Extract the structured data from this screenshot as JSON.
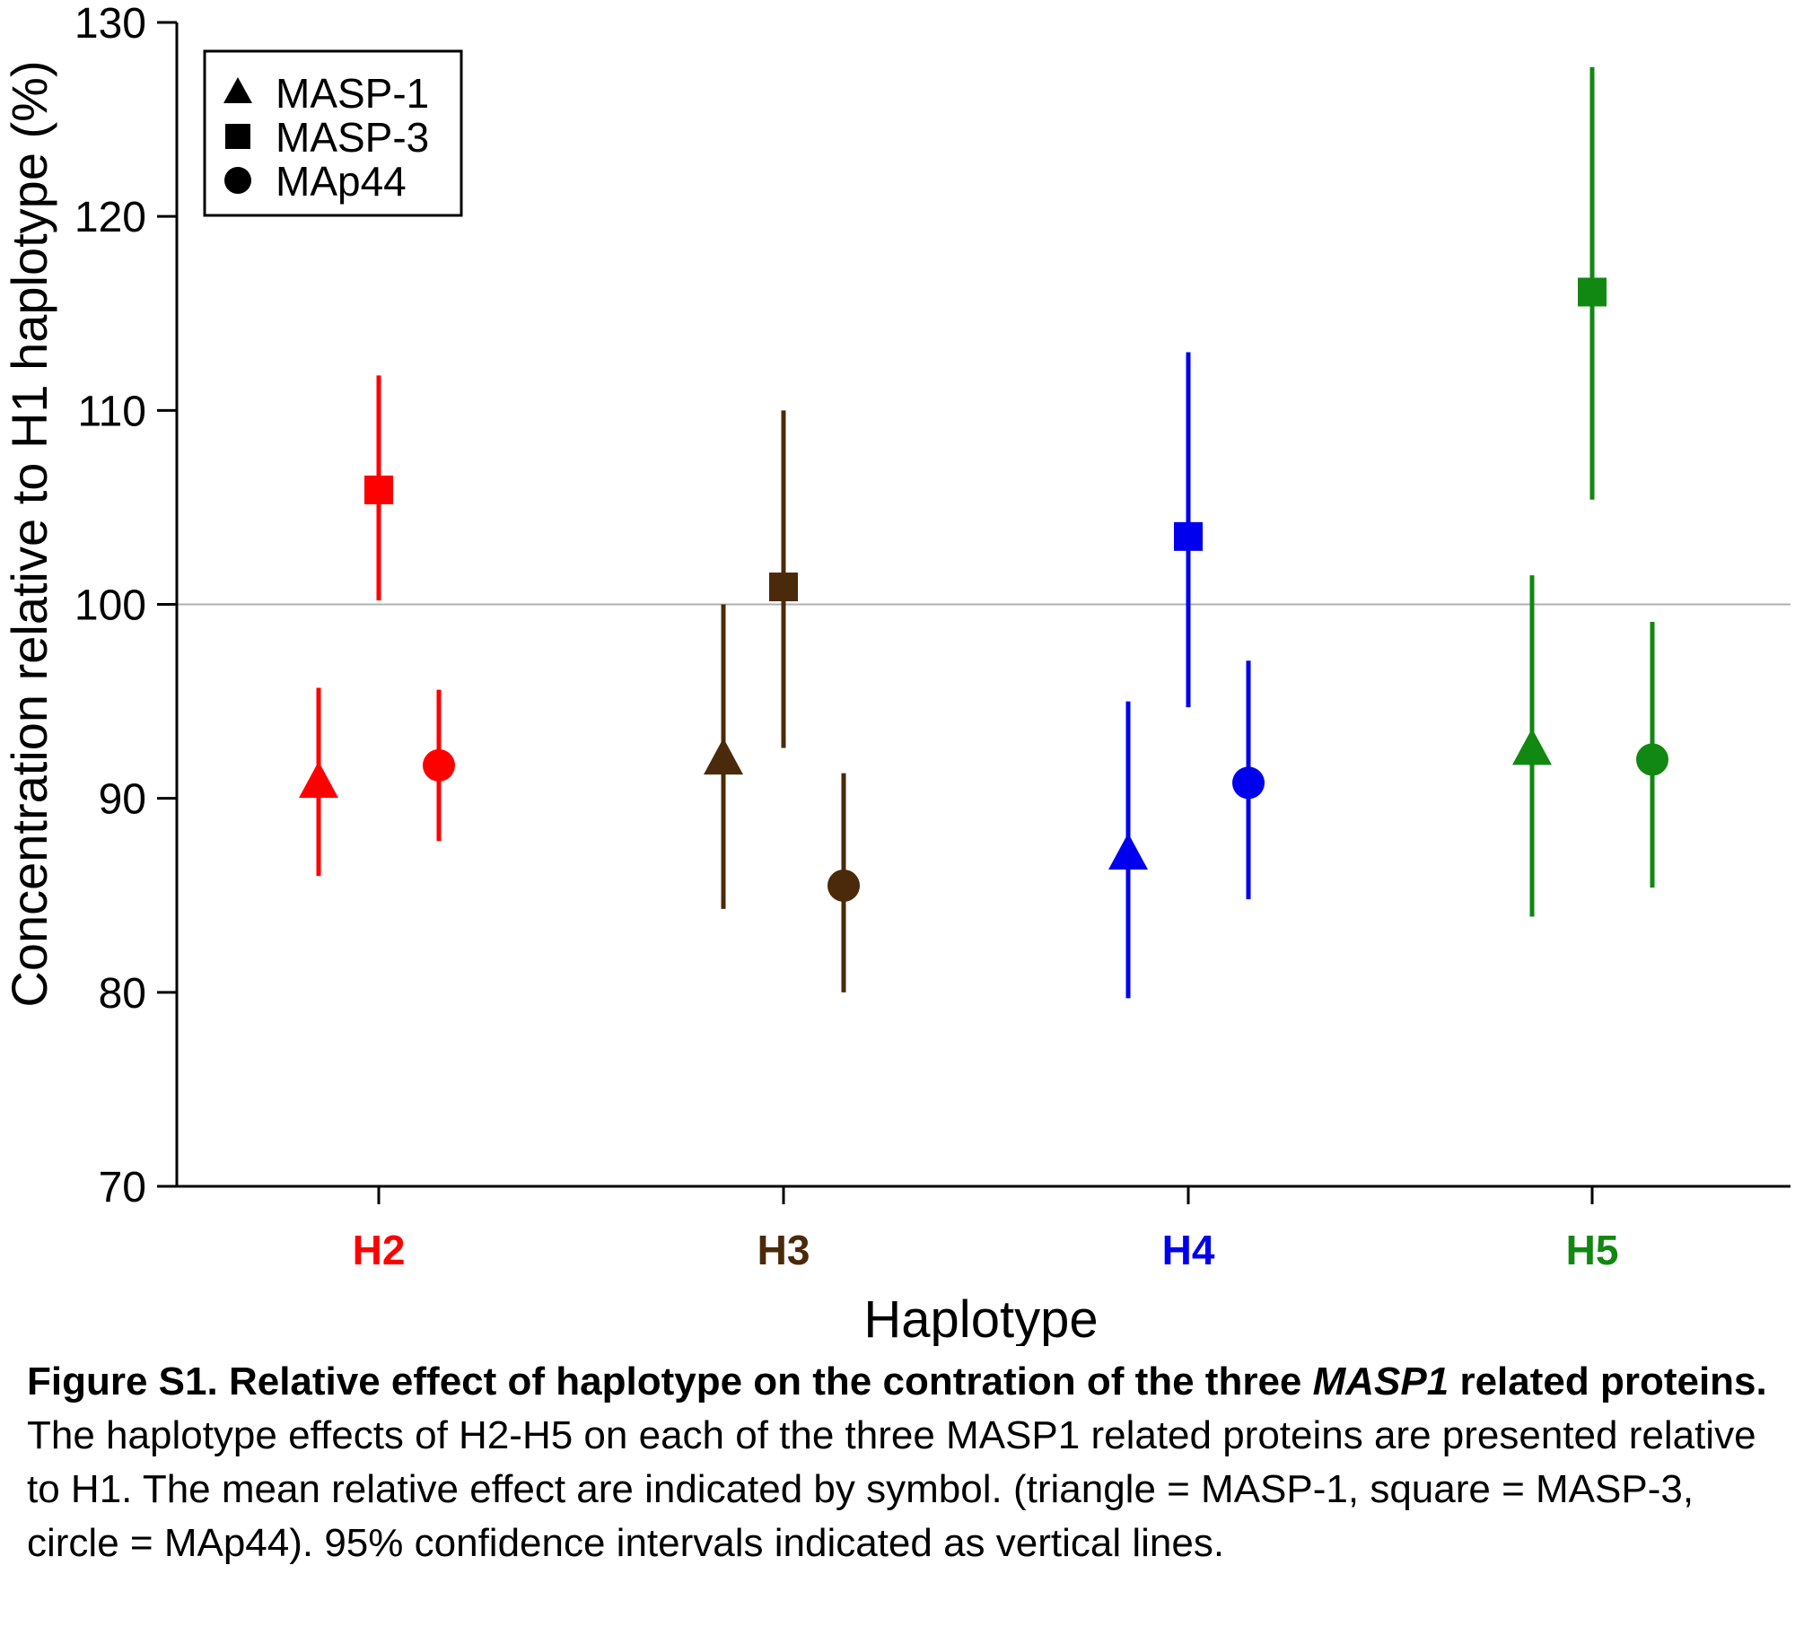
{
  "chart_data": {
    "type": "scatter",
    "xlabel": "Haplotype",
    "ylabel": "Concentration relative to H1 haplotype (%)",
    "ylim": [
      70,
      130
    ],
    "yticks": [
      "70",
      "80",
      "90",
      "100",
      "110",
      "120",
      "130"
    ],
    "reference_line": 100,
    "legend_position": "top-left",
    "categories": [
      {
        "label": "H2",
        "color": "#ff0000"
      },
      {
        "label": "H3",
        "color": "#4a2a0a"
      },
      {
        "label": "H4",
        "color": "#0000ee"
      },
      {
        "label": "H5",
        "color": "#118811"
      }
    ],
    "series": [
      {
        "name": "MASP-1",
        "marker": "triangle",
        "values": [
          90.8,
          92.0,
          87.1,
          92.5
        ],
        "ci_low": [
          86.0,
          84.3,
          79.7,
          83.9
        ],
        "ci_high": [
          95.7,
          100.0,
          95.0,
          101.5
        ]
      },
      {
        "name": "MASP-3",
        "marker": "square",
        "values": [
          105.9,
          100.9,
          103.5,
          116.1
        ],
        "ci_low": [
          100.2,
          92.6,
          94.7,
          105.4
        ],
        "ci_high": [
          111.8,
          110.0,
          113.0,
          127.7
        ]
      },
      {
        "name": "MAp44",
        "marker": "circle",
        "values": [
          91.7,
          85.5,
          90.8,
          92.0
        ],
        "ci_low": [
          87.8,
          80.0,
          84.8,
          85.4
        ],
        "ci_high": [
          95.6,
          91.3,
          97.1,
          99.1
        ]
      }
    ]
  },
  "caption": {
    "bold_prefix": "Figure S1. Relative effect of haplotype on the contration of the three ",
    "bold_italic": "MASP1",
    "bold_suffix": " related proteins.",
    "body": " The haplotype effects of H2-H5 on each of the three MASP1 related proteins are presented relative to H1. The mean relative effect are indicated by symbol. (triangle = MASP-1,  square = MASP-3, circle = MAp44). 95% confidence intervals indicated as vertical lines."
  }
}
